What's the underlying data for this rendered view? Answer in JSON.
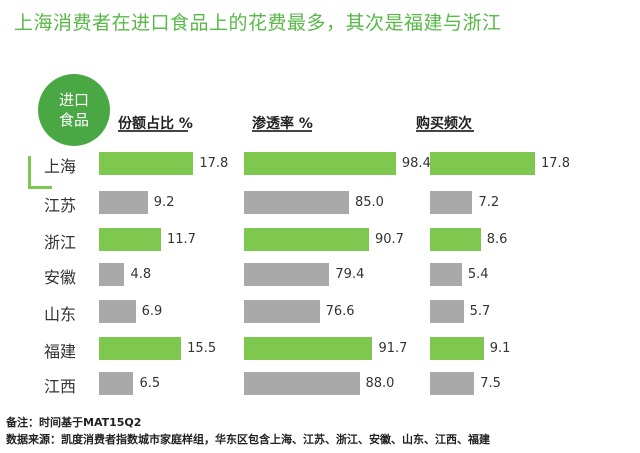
{
  "title": "上海消费者在进口食品上的花费最多，其次是福建与浙江",
  "badge": {
    "line1": "进口",
    "line2": "食品"
  },
  "colors": {
    "highlight": "#7fc84f",
    "normal": "#a9a9a9",
    "title": "#58b848",
    "badge": "#49a844"
  },
  "footnotes": {
    "note": "备注：时间基于MAT15Q2",
    "source": "数据来源：凯度消费者指数城市家庭样组，华东区包含上海、江苏、浙江、安徽、山东、江西、福建"
  },
  "chart_data": {
    "type": "bar",
    "categories": [
      "上海",
      "江苏",
      "浙江",
      "安徽",
      "山东",
      "福建",
      "江西"
    ],
    "highlighted": [
      "上海",
      "浙江",
      "福建"
    ],
    "series": [
      {
        "name": "份额占比 %",
        "values": [
          17.8,
          9.2,
          11.7,
          4.8,
          6.9,
          15.5,
          6.5
        ],
        "labels": [
          "17.8",
          "9.2",
          "11.7",
          "4.8",
          "6.9",
          "15.5",
          "6.5"
        ]
      },
      {
        "name": "渗透率 %",
        "values": [
          98.4,
          85.0,
          90.7,
          79.4,
          76.6,
          91.7,
          88.0
        ],
        "labels": [
          "98.4",
          "85.0",
          "90.7",
          "79.4",
          "76.6",
          "91.7",
          "88.0"
        ]
      },
      {
        "name": "购买频次",
        "values": [
          17.8,
          7.2,
          8.6,
          5.4,
          5.7,
          9.1,
          7.5
        ],
        "labels": [
          "17.8",
          "7.2",
          "8.6",
          "5.4",
          "5.7",
          "9.1",
          "7.5"
        ]
      }
    ]
  }
}
